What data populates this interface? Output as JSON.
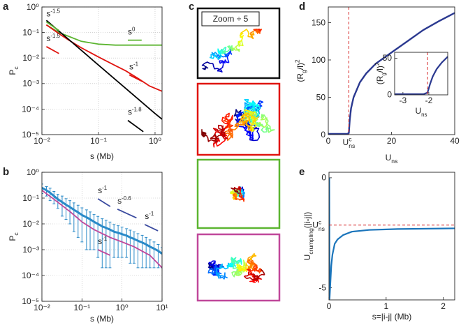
{
  "chart_data": [
    {
      "type": "line",
      "panel_label": "a",
      "xlabel": "s (Mb)",
      "ylabel": [
        "P",
        "c"
      ],
      "xlog": true,
      "ylog": true,
      "grid": true,
      "xlim": [
        0.01,
        1.33
      ],
      "ylim": [
        1e-05,
        1
      ],
      "xticks": [
        {
          "value": 0.01,
          "label": "10⁻²"
        },
        {
          "value": 0.1,
          "label": "10⁻¹"
        },
        {
          "value": 1,
          "label": "10⁰"
        }
      ],
      "yticks": [
        {
          "value": 1e-05,
          "label": "10⁻⁵"
        },
        {
          "value": 0.0001,
          "label": "10⁻⁴"
        },
        {
          "value": 0.001,
          "label": "10⁻³"
        },
        {
          "value": 0.01,
          "label": "10⁻²"
        },
        {
          "value": 0.1,
          "label": "10⁻¹"
        },
        {
          "value": 1,
          "label": "10⁰"
        }
      ],
      "series": [
        {
          "color": "#5cb531",
          "x": [
            0.012,
            0.02,
            0.03,
            0.05,
            0.1,
            0.2,
            0.5,
            1.33
          ],
          "values": [
            0.2,
            0.1,
            0.07,
            0.045,
            0.035,
            0.032,
            0.032,
            0.032
          ]
        },
        {
          "color": "#e0140f",
          "x": [
            0.012,
            0.02,
            0.03,
            0.05,
            0.1,
            0.2,
            0.3,
            0.5,
            0.8,
            1.33
          ],
          "values": [
            0.2,
            0.09,
            0.05,
            0.025,
            0.011,
            0.005,
            0.0032,
            0.0016,
            0.0008,
            0.0005
          ]
        },
        {
          "color": "#000000",
          "x": [
            0.012,
            0.03,
            0.1,
            0.3,
            1,
            1.33
          ],
          "values": [
            0.3,
            0.0525,
            0.0053,
            0.00066,
            6.7e-05,
            4e-05
          ]
        }
      ],
      "guides": [
        {
          "label": [
            "s",
            "-1.5"
          ],
          "color": "#5cb531",
          "x": [
            0.012,
            0.02
          ],
          "y": [
            0.26,
            0.12
          ]
        },
        {
          "label": [
            "s",
            "-1.5"
          ],
          "color": "#e0140f",
          "x": [
            0.012,
            0.02
          ],
          "y": [
            0.028,
            0.015
          ]
        },
        {
          "label": [
            "s",
            "0"
          ],
          "color": "#5cb531",
          "x": [
            0.33,
            0.58
          ],
          "y": [
            0.05,
            0.05
          ]
        },
        {
          "label": [
            "s",
            "-1"
          ],
          "color": "#e0140f",
          "x": [
            0.35,
            0.6
          ],
          "y": [
            0.0022,
            0.0012
          ]
        },
        {
          "label": [
            "s",
            "-1.8"
          ],
          "color": "#000000",
          "x": [
            0.33,
            0.62
          ],
          "y": [
            3.6e-05,
            1.3e-05
          ]
        }
      ]
    },
    {
      "type": "line",
      "panel_label": "b",
      "xlabel": "s (Mb)",
      "ylabel": [
        "P",
        "c"
      ],
      "xlog": true,
      "ylog": true,
      "grid": true,
      "xlim": [
        0.01,
        10
      ],
      "ylim": [
        1e-05,
        1
      ],
      "xticks": [
        {
          "value": 0.01,
          "label": "10⁻²"
        },
        {
          "value": 0.1,
          "label": "10⁻¹"
        },
        {
          "value": 1,
          "label": "10⁰"
        },
        {
          "value": 10,
          "label": "10¹"
        }
      ],
      "yticks": [
        {
          "value": 1e-05,
          "label": "10⁻⁵"
        },
        {
          "value": 0.0001,
          "label": "10⁻⁴"
        },
        {
          "value": 0.001,
          "label": "10⁻³"
        },
        {
          "value": 0.01,
          "label": "10⁻²"
        },
        {
          "value": 0.1,
          "label": "10⁻¹"
        },
        {
          "value": 1,
          "label": "10⁰"
        }
      ],
      "series": [
        {
          "color": "#2a8ac8",
          "x": [
            0.01,
            0.013,
            0.016,
            0.02,
            0.025,
            0.032,
            0.04,
            0.05,
            0.063,
            0.08,
            0.1,
            0.13,
            0.16,
            0.2,
            0.25,
            0.32,
            0.4,
            0.5,
            0.63,
            0.8,
            1,
            1.3,
            1.6,
            2,
            2.5,
            3.2,
            4,
            5,
            6.3,
            8,
            10
          ],
          "values": [
            0.25,
            0.2,
            0.16,
            0.12,
            0.09,
            0.07,
            0.055,
            0.045,
            0.035,
            0.028,
            0.022,
            0.018,
            0.015,
            0.012,
            0.01,
            0.008,
            0.007,
            0.006,
            0.005,
            0.0045,
            0.004,
            0.0035,
            0.003,
            0.0026,
            0.0022,
            0.0019,
            0.0016,
            0.0013,
            0.0011,
            0.0009,
            0.0007
          ],
          "errors": [
            0.1,
            0.08,
            0.08,
            0.06,
            0.05,
            0.05,
            0.04,
            0.035,
            0.03,
            0.025,
            0.02,
            0.017,
            0.014,
            0.011,
            0.0095,
            0.0078,
            0.0068,
            0.0058,
            0.0045,
            0.004,
            0.0035,
            0.003,
            0.0027,
            0.0023,
            0.002,
            0.0017,
            0.0014,
            0.0011,
            0.0009,
            0.0007,
            0.0005
          ]
        },
        {
          "color": "#c0479a",
          "x": [
            0.01,
            0.02,
            0.05,
            0.1,
            0.2,
            0.5,
            1,
            2,
            5,
            10
          ],
          "values": [
            0.2,
            0.09,
            0.03,
            0.012,
            0.006,
            0.003,
            0.002,
            0.0013,
            0.0006,
            0.0002
          ]
        }
      ],
      "guides": [
        {
          "label": [
            "s",
            "-1"
          ],
          "color": "#3a4a9f",
          "x": [
            0.25,
            0.51
          ],
          "y": [
            0.094,
            0.047
          ]
        },
        {
          "label": [
            "s",
            "-0.6"
          ],
          "color": "#3a4a9f",
          "x": [
            0.77,
            2.3
          ],
          "y": [
            0.037,
            0.017
          ]
        },
        {
          "label": [
            "s",
            "-1"
          ],
          "color": "#3a4a9f",
          "x": [
            3.7,
            7.9
          ],
          "y": [
            0.0094,
            0.0054
          ]
        },
        {
          "label": [
            "s",
            "-1"
          ],
          "color": "#c0479a",
          "x": [
            0.25,
            0.51
          ],
          "y": [
            0.001,
            0.0006
          ]
        }
      ]
    },
    {
      "type": "line",
      "panel_label": "d",
      "xlabel": [
        "U",
        "ns"
      ],
      "ylabel": [
        "(R",
        "g",
        "/l)",
        "2"
      ],
      "xlim": [
        0,
        40
      ],
      "ylim": [
        0,
        171
      ],
      "xticks": [
        0,
        20,
        40
      ],
      "yticks": [
        0,
        50,
        100,
        150
      ],
      "series": [
        {
          "color": "#2b3990",
          "x": [
            0,
            4,
            6,
            6.5,
            6.8,
            7.2,
            8,
            10,
            12,
            15,
            20,
            25,
            30,
            35,
            40
          ],
          "values": [
            1,
            1,
            1,
            2,
            20,
            35,
            50,
            70,
            82,
            95,
            110,
            125,
            140,
            152,
            163
          ]
        }
      ],
      "xref": {
        "value": 6.5,
        "label": [
          "U",
          "c",
          "ns"
        ],
        "color": "#d62728"
      },
      "inset": {
        "type": "line",
        "xlabel": [
          "U",
          "ns"
        ],
        "ylabel": [
          "(R",
          "g",
          "/l)",
          "2"
        ],
        "xlim": [
          -3.32,
          -1.27
        ],
        "ylim": [
          0,
          58
        ],
        "xticks": [
          -3,
          -2
        ],
        "yticks": [
          0,
          50
        ],
        "series": [
          {
            "color": "#2b3990",
            "x": [
              -3.32,
              -2.5,
              -2.2,
              -2.05,
              -1.95,
              -1.85,
              -1.7,
              -1.5,
              -1.27
            ],
            "values": [
              1,
              1,
              1,
              3,
              15,
              25,
              35,
              44,
              52
            ]
          }
        ],
        "xref": {
          "value": -2.05,
          "color": "#d62728"
        }
      }
    },
    {
      "type": "line",
      "panel_label": "e",
      "xlabel": "s=|i-j| (Mb)",
      "ylabel": [
        "U",
        "crumpling",
        "(|i-j|)"
      ],
      "xlim": [
        0,
        2.2
      ],
      "ylim": [
        -5.55,
        0.25
      ],
      "xticks": [
        0,
        1,
        2
      ],
      "yticks": [
        0,
        -5
      ],
      "series": [
        {
          "color": "#1b75bb",
          "x": [
            0.005,
            0.01,
            0.02,
            0.04,
            0.06,
            0.1,
            0.15,
            0.25,
            0.4,
            0.7,
            1.2,
            2.2
          ],
          "values": [
            0,
            -5.5,
            -5,
            -4,
            -3.5,
            -3,
            -2.8,
            -2.6,
            -2.45,
            -2.37,
            -2.33,
            -2.3
          ]
        }
      ],
      "yref": {
        "value": -2.15,
        "label": [
          "U",
          "c",
          "ns"
        ],
        "color": "#d62728"
      }
    }
  ],
  "panel_c": {
    "panel_label": "c",
    "zoom_label": "Zoom ÷ 5"
  }
}
